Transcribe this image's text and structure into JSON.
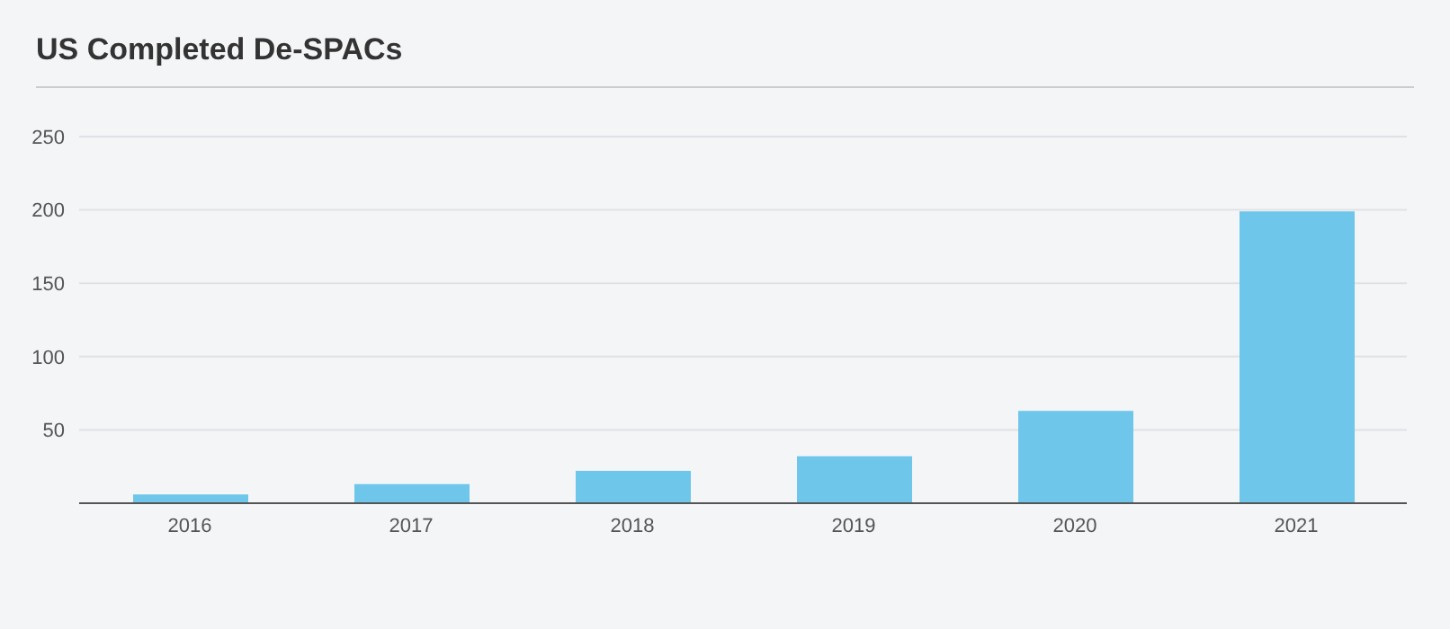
{
  "chart_data": {
    "type": "bar",
    "title": "US Completed De-SPACs",
    "categories": [
      "2016",
      "2017",
      "2018",
      "2019",
      "2020",
      "2021"
    ],
    "values": [
      6,
      13,
      22,
      32,
      63,
      199
    ],
    "color": "#6ec6ea",
    "ylim": [
      0,
      250
    ],
    "yticks": [
      50,
      100,
      150,
      200,
      250
    ],
    "grid": "y"
  }
}
